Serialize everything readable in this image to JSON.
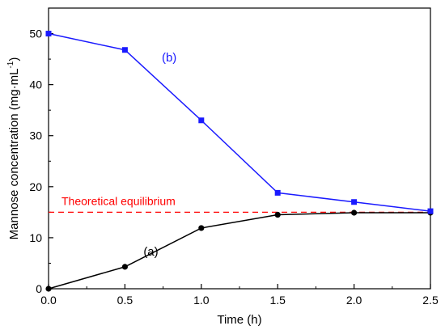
{
  "chart_data": {
    "type": "line",
    "xlabel": "Time (h)",
    "ylabel_main": "Mannose concentration (mg·mL",
    "ylabel_sup": "-1",
    "ylabel_close": ")",
    "xlim": [
      0,
      2.5
    ],
    "ylim": [
      0,
      55
    ],
    "x_ticks": [
      "0.0",
      "0.5",
      "1.0",
      "1.5",
      "2.0",
      "2.5"
    ],
    "y_ticks": [
      "0",
      "10",
      "20",
      "30",
      "40",
      "50"
    ],
    "grid": false,
    "series": [
      {
        "name": "(a)",
        "color": "#000000",
        "marker": "circle",
        "x": [
          0.0,
          0.5,
          1.0,
          1.5,
          2.0,
          2.5
        ],
        "y": [
          0.0,
          4.3,
          11.9,
          14.5,
          14.9,
          14.9
        ]
      },
      {
        "name": "(b)",
        "color": "#1a1aff",
        "marker": "square",
        "x": [
          0.0,
          0.5,
          1.0,
          1.5,
          2.0,
          2.5
        ],
        "y": [
          50.0,
          46.8,
          33.0,
          18.8,
          17.0,
          15.2
        ]
      }
    ],
    "reference_line": {
      "label": "Theoretical equilibrium",
      "y": 15,
      "color": "#ff0000",
      "style": "dashed"
    }
  }
}
